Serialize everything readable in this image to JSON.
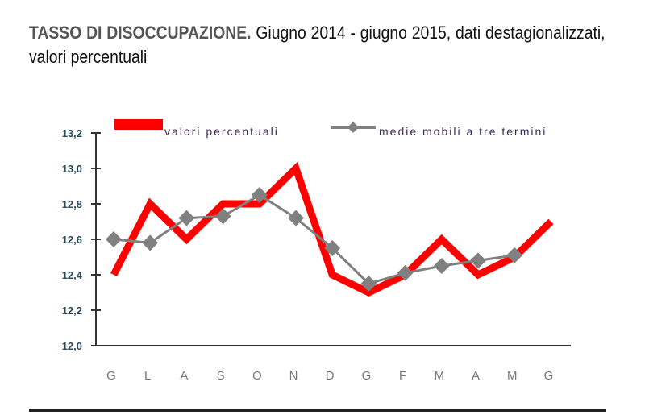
{
  "header": {
    "title_strong": "TASSO DI DISOCCUPAZIONE.",
    "title_rest": " Giugno 2014 - giugno 2015, dati destagionalizzati, valori percentuali"
  },
  "legend": {
    "series_1": "valori percentuali",
    "series_2": "medie mobili a tre termini"
  },
  "colors": {
    "series_1": "#ff0000",
    "series_2": "#808080",
    "axis": "#333333"
  },
  "y_ticks": [
    "13,2",
    "13,0",
    "12,8",
    "12,6",
    "12,4",
    "12,2",
    "12,0"
  ],
  "x_ticks": [
    "G",
    "L",
    "A",
    "S",
    "O",
    "N",
    "D",
    "G",
    "F",
    "M",
    "A",
    "M",
    "G"
  ],
  "chart_data": {
    "type": "line",
    "title": "TASSO DI DISOCCUPAZIONE. Giugno 2014 - giugno 2015, dati destagionalizzati, valori percentuali",
    "xlabel": "",
    "ylabel": "",
    "categories": [
      "G",
      "L",
      "A",
      "S",
      "O",
      "N",
      "D",
      "G",
      "F",
      "M",
      "A",
      "M",
      "G"
    ],
    "ylim": [
      12.0,
      13.2
    ],
    "yticks": [
      12.0,
      12.2,
      12.4,
      12.6,
      12.8,
      13.0,
      13.2
    ],
    "grid": false,
    "legend_position": "top",
    "series": [
      {
        "name": "valori percentuali",
        "color": "#ff0000",
        "values": [
          12.4,
          12.8,
          12.6,
          12.8,
          12.8,
          13.0,
          12.4,
          12.3,
          12.4,
          12.6,
          12.4,
          12.5,
          12.7
        ]
      },
      {
        "name": "medie mobili a tre termini",
        "color": "#808080",
        "marker": "diamond",
        "values": [
          12.6,
          12.58,
          12.72,
          12.73,
          12.85,
          12.72,
          12.55,
          12.35,
          12.41,
          12.45,
          12.48,
          12.51,
          null
        ]
      }
    ]
  }
}
